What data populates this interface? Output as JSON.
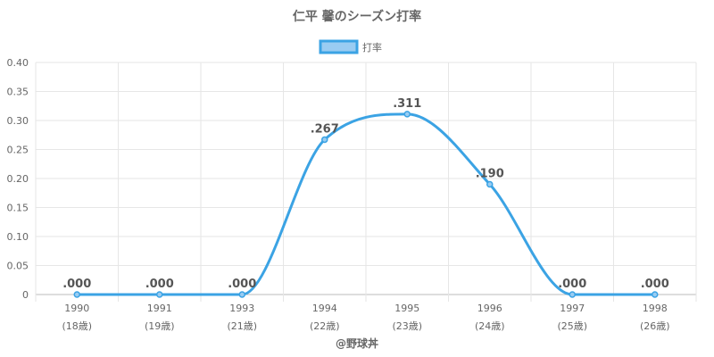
{
  "chart_data": {
    "type": "line",
    "title": "仁平 馨のシーズン打率",
    "legend_position": "top",
    "categories": [
      "1990",
      "1991",
      "1993",
      "1994",
      "1995",
      "1996",
      "1997",
      "1998"
    ],
    "category_sublabels": [
      "(18歳)",
      "(19歳)",
      "(21歳)",
      "(22歳)",
      "(23歳)",
      "(24歳)",
      "(25歳)",
      "(26歳)"
    ],
    "series": [
      {
        "name": "打率",
        "values": [
          0.0,
          0.0,
          0.0,
          0.267,
          0.311,
          0.19,
          0.0,
          0.0
        ],
        "data_labels": [
          ".000",
          ".000",
          ".000",
          ".267",
          ".311",
          ".190",
          ".000",
          ".000"
        ],
        "color": "#3ba3e4",
        "fill": "#99ccf2"
      }
    ],
    "ylim": [
      0,
      0.4
    ],
    "yticks": [
      "0",
      "0.05",
      "0.10",
      "0.15",
      "0.20",
      "0.25",
      "0.30",
      "0.35",
      "0.40"
    ],
    "grid": true,
    "footer": "@野球丼"
  }
}
